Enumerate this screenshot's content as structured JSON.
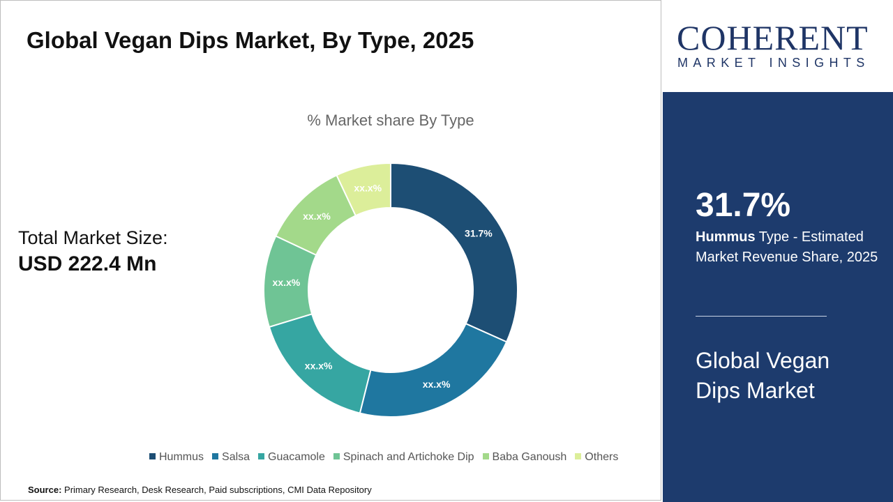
{
  "title": "Global Vegan Dips Market, By Type, 2025",
  "total_market": {
    "label": "Total Market Size:",
    "value": "USD 222.4 Mn"
  },
  "source": {
    "label": "Source:",
    "text": "Primary Research, Desk Research, Paid subscriptions, CMI Data Repository"
  },
  "logo": {
    "name": "COHERENT",
    "tagline": "MARKET INSIGHTS"
  },
  "panel": {
    "highlight": "31.7%",
    "segment": "Hummus",
    "description": "Type - Estimated Market Revenue Share, 2025",
    "market": "Global Vegan Dips Market"
  },
  "chart_data": {
    "type": "pie",
    "title": "% Market share By Type",
    "categories": [
      "Hummus",
      "Salsa",
      "Guacamole",
      "Spinach and Artichoke Dip",
      "Baba Ganoush",
      "Others"
    ],
    "values": [
      31.7,
      22.2,
      16.4,
      11.7,
      11.0,
      7.0
    ],
    "labels": [
      "31.7%",
      "xx.x%",
      "xx.x%",
      "xx.x%",
      "xx.x%",
      "xx.x%"
    ],
    "colors": [
      "#1d4e74",
      "#1f77a0",
      "#36a6a2",
      "#6fc495",
      "#a3d98a",
      "#dcee9a"
    ],
    "legend": "bottom"
  }
}
